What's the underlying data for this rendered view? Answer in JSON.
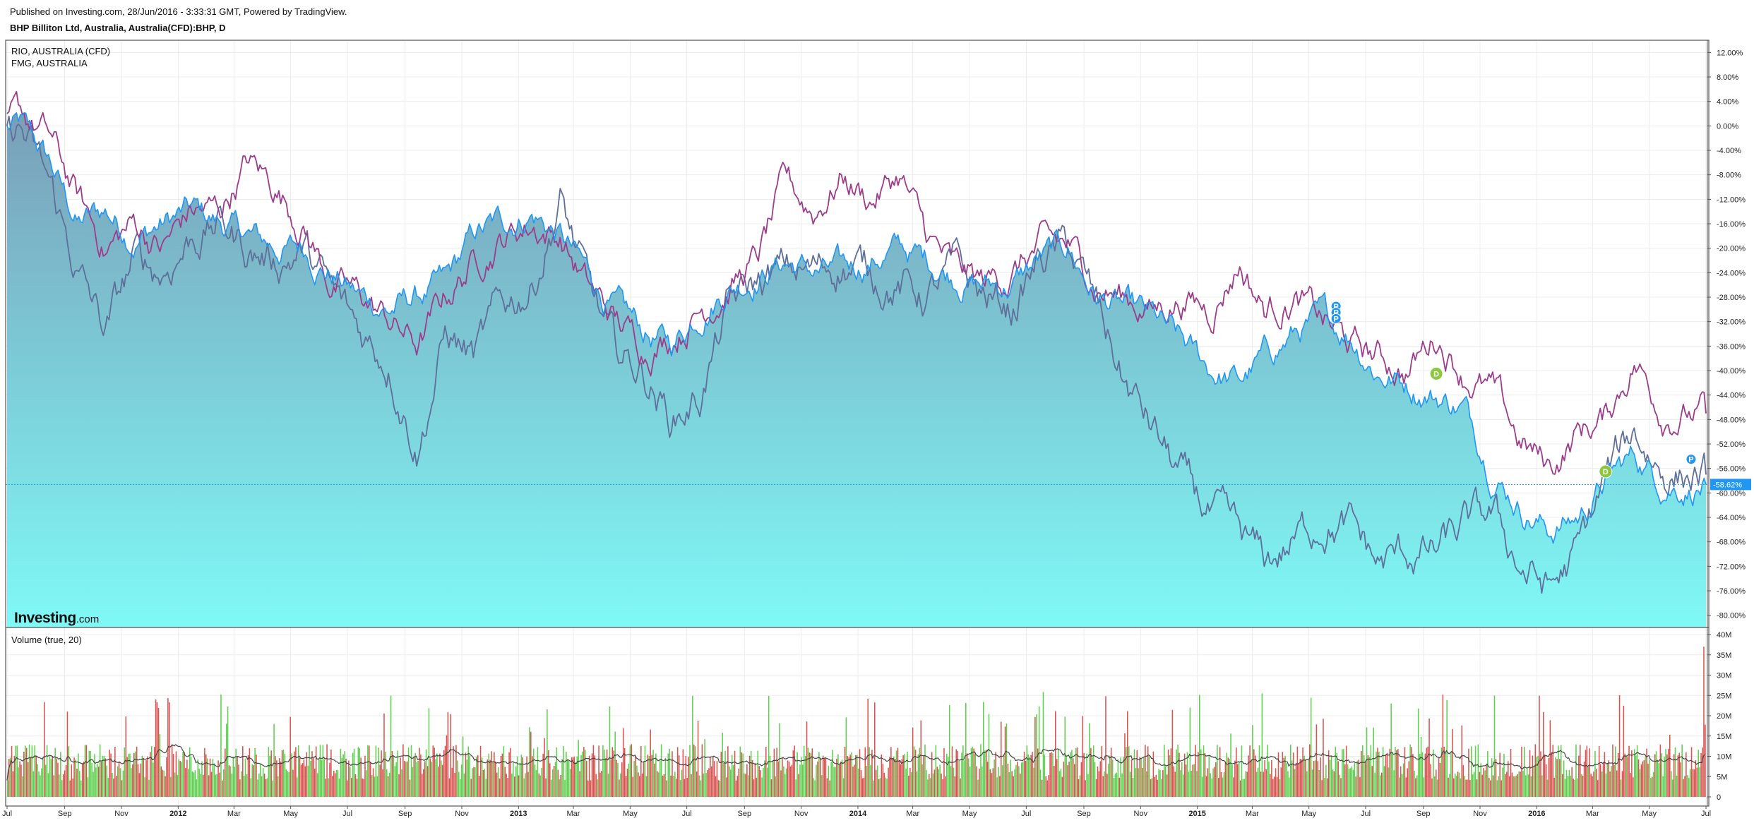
{
  "header": {
    "published": "Published on Investing.com, 28/Jun/2016 - 3:33:31 GMT, Powered by TradingView.",
    "symbol": "BHP Billiton Ltd, Australia, Australia(CFD):BHP, D"
  },
  "logo": {
    "bold": "Investing",
    "suffix": ".com"
  },
  "colors": {
    "bhp_line": "#2196f3",
    "area_top": "#7a9fb8",
    "area_bottom": "#7ff9f6",
    "rio_line": "#9c3d8c",
    "fmg_line": "#5e6f9a",
    "vol_up": "#5fcf4f",
    "vol_down": "#d9534f",
    "vol_ma": "#444444",
    "marker_d": "#8dc63f",
    "marker_p": "#2196f3",
    "current_label_bg": "#2196f3"
  },
  "chart_data": [
    {
      "type": "area",
      "title": "BHP Billiton Ltd, Australia, Australia(CFD):BHP, D",
      "legend": [
        "RIO, AUSTRALIA (CFD)",
        "FMG, AUSTRALIA"
      ],
      "y_unit": "percent change",
      "ylim": [
        -82,
        14
      ],
      "y_ticks": [
        "12.00%",
        "8.00%",
        "4.00%",
        "0.00%",
        "-4.00%",
        "-8.00%",
        "-12.00%",
        "-16.00%",
        "-20.00%",
        "-24.00%",
        "-28.00%",
        "-32.00%",
        "-36.00%",
        "-40.00%",
        "-44.00%",
        "-48.00%",
        "-52.00%",
        "-56.00%",
        "-60.00%",
        "-64.00%",
        "-68.00%",
        "-72.00%",
        "-76.00%",
        "-80.00%"
      ],
      "x_ticks": [
        "Jul",
        "Sep",
        "Nov",
        "2012",
        "Mar",
        "May",
        "Jul",
        "Sep",
        "Nov",
        "2013",
        "Mar",
        "May",
        "Jul",
        "Sep",
        "Nov",
        "2014",
        "Mar",
        "May",
        "Jul",
        "Sep",
        "Nov",
        "2015",
        "Mar",
        "May",
        "Jul",
        "Sep",
        "Nov",
        "2016",
        "Mar",
        "May",
        "Jul"
      ],
      "current_value_label": "-58.62%",
      "current_value": -58.62,
      "grid": true,
      "series": [
        {
          "name": "BHP",
          "x": [
            "2011-07",
            "2011-08",
            "2011-09",
            "2011-10",
            "2011-11",
            "2011-12",
            "2012-01",
            "2012-02",
            "2012-03",
            "2012-04",
            "2012-05",
            "2012-06",
            "2012-07",
            "2012-08",
            "2012-09",
            "2012-10",
            "2012-11",
            "2012-12",
            "2013-01",
            "2013-02",
            "2013-03",
            "2013-04",
            "2013-05",
            "2013-06",
            "2013-07",
            "2013-08",
            "2013-09",
            "2013-10",
            "2013-11",
            "2013-12",
            "2014-01",
            "2014-02",
            "2014-03",
            "2014-04",
            "2014-05",
            "2014-06",
            "2014-07",
            "2014-08",
            "2014-09",
            "2014-10",
            "2014-11",
            "2014-12",
            "2015-01",
            "2015-02",
            "2015-03",
            "2015-04",
            "2015-05",
            "2015-06",
            "2015-07",
            "2015-08",
            "2015-09",
            "2015-10",
            "2015-11",
            "2015-12",
            "2016-01",
            "2016-02",
            "2016-03",
            "2016-04",
            "2016-05",
            "2016-06"
          ],
          "values": [
            0,
            -6,
            -16,
            -14,
            -18,
            -16,
            -14,
            -16,
            -18,
            -20,
            -20,
            -24,
            -28,
            -30,
            -28,
            -26,
            -18,
            -16,
            -14,
            -18,
            -24,
            -30,
            -34,
            -36,
            -30,
            -26,
            -24,
            -22,
            -24,
            -24,
            -22,
            -20,
            -22,
            -24,
            -26,
            -26,
            -22,
            -20,
            -28,
            -30,
            -32,
            -36,
            -40,
            -42,
            -38,
            -34,
            -32,
            -34,
            -40,
            -42,
            -44,
            -46,
            -56,
            -62,
            -66,
            -64,
            -58,
            -54,
            -58,
            -58.62
          ]
        },
        {
          "name": "RIO",
          "x": [
            "2011-07",
            "2011-08",
            "2011-09",
            "2011-10",
            "2011-11",
            "2011-12",
            "2012-01",
            "2012-02",
            "2012-03",
            "2012-04",
            "2012-05",
            "2012-06",
            "2012-07",
            "2012-08",
            "2012-09",
            "2012-10",
            "2012-11",
            "2012-12",
            "2013-01",
            "2013-02",
            "2013-03",
            "2013-04",
            "2013-05",
            "2013-06",
            "2013-07",
            "2013-08",
            "2013-09",
            "2013-10",
            "2013-11",
            "2013-12",
            "2014-01",
            "2014-02",
            "2014-03",
            "2014-04",
            "2014-05",
            "2014-06",
            "2014-07",
            "2014-08",
            "2014-09",
            "2014-10",
            "2014-11",
            "2014-12",
            "2015-01",
            "2015-02",
            "2015-03",
            "2015-04",
            "2015-05",
            "2015-06",
            "2015-07",
            "2015-08",
            "2015-09",
            "2015-10",
            "2015-11",
            "2015-12",
            "2016-01",
            "2016-02",
            "2016-03",
            "2016-04",
            "2016-05",
            "2016-06"
          ],
          "values": [
            2,
            -2,
            -12,
            -20,
            -16,
            -20,
            -14,
            -14,
            -6,
            -10,
            -16,
            -26,
            -28,
            -32,
            -36,
            -28,
            -22,
            -18,
            -16,
            -18,
            -26,
            -32,
            -36,
            -34,
            -30,
            -26,
            -22,
            -10,
            -14,
            -8,
            -12,
            -8,
            -18,
            -24,
            -26,
            -24,
            -20,
            -20,
            -26,
            -28,
            -30,
            -28,
            -30,
            -22,
            -30,
            -28,
            -32,
            -36,
            -38,
            -40,
            -34,
            -40,
            -44,
            -52,
            -56,
            -50,
            -48,
            -38,
            -46,
            -47
          ]
        },
        {
          "name": "FMG",
          "x": [
            "2011-07",
            "2011-08",
            "2011-09",
            "2011-10",
            "2011-11",
            "2011-12",
            "2012-01",
            "2012-02",
            "2012-03",
            "2012-04",
            "2012-05",
            "2012-06",
            "2012-07",
            "2012-08",
            "2012-09",
            "2012-10",
            "2012-11",
            "2012-12",
            "2013-01",
            "2013-02",
            "2013-03",
            "2013-04",
            "2013-05",
            "2013-06",
            "2013-07",
            "2013-08",
            "2013-09",
            "2013-10",
            "2013-11",
            "2013-12",
            "2014-01",
            "2014-02",
            "2014-03",
            "2014-04",
            "2014-05",
            "2014-06",
            "2014-07",
            "2014-08",
            "2014-09",
            "2014-10",
            "2014-11",
            "2014-12",
            "2015-01",
            "2015-02",
            "2015-03",
            "2015-04",
            "2015-05",
            "2015-06",
            "2015-07",
            "2015-08",
            "2015-09",
            "2015-10",
            "2015-11",
            "2015-12",
            "2016-01",
            "2016-02",
            "2016-03",
            "2016-04",
            "2016-05",
            "2016-06"
          ],
          "values": [
            0,
            -10,
            -24,
            -34,
            -22,
            -24,
            -18,
            -16,
            -20,
            -22,
            -20,
            -28,
            -34,
            -38,
            -52,
            -34,
            -38,
            -30,
            -26,
            -12,
            -26,
            -38,
            -40,
            -48,
            -44,
            -30,
            -26,
            -24,
            -24,
            -22,
            -24,
            -26,
            -28,
            -24,
            -28,
            -30,
            -22,
            -20,
            -30,
            -42,
            -50,
            -58,
            -64,
            -68,
            -72,
            -68,
            -64,
            -66,
            -72,
            -70,
            -70,
            -66,
            -64,
            -72,
            -76,
            -70,
            -58,
            -50,
            -56,
            -57
          ]
        }
      ]
    },
    {
      "type": "bar",
      "title": "Volume (true, 20)",
      "ylim": [
        0,
        40000000
      ],
      "y_ticks": [
        "40M",
        "35M",
        "30M",
        "25M",
        "20M",
        "15M",
        "10M",
        "5M",
        "0"
      ],
      "grid": true,
      "typical_range": [
        4000000,
        14000000
      ],
      "moving_average_range": [
        8000000,
        14000000
      ],
      "max_value": 37000000
    }
  ],
  "markers": [
    {
      "label": "D",
      "date": "2015-09",
      "value": -40.5
    },
    {
      "label": "D",
      "date": "2016-03",
      "value": -56.5
    },
    {
      "label": "P",
      "date": "2015-05",
      "value": -29.5
    },
    {
      "label": "P",
      "date": "2015-05",
      "value": -30.5
    },
    {
      "label": "P",
      "date": "2015-05",
      "value": -31.5
    },
    {
      "label": "P",
      "date": "2016-06",
      "value": -54.5
    }
  ]
}
